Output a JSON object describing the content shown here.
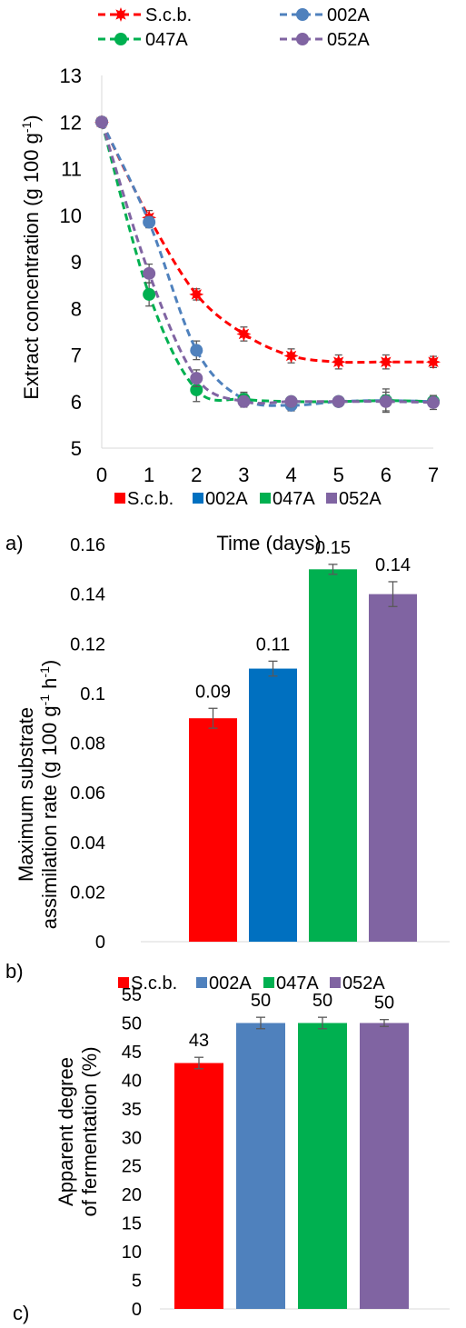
{
  "panels": {
    "a": "a)",
    "b": "b)",
    "c": "c)"
  },
  "colors": {
    "scb": "#ff0000",
    "a002_line": "#4f81bd",
    "a002_bar": "#0070c0",
    "a002_bar_c": "#4f81bd",
    "a047": "#00b050",
    "a052": "#8064a2",
    "axis": "#d9d9d9",
    "error": "#595959"
  },
  "chart_data": [
    {
      "type": "line",
      "xlabel": "Time (days)",
      "ylabel_main": "Extract concentration (g 100 g",
      "ylabel_sup": "-1",
      "ylabel_end": ")",
      "x": [
        0,
        1,
        2,
        3,
        4,
        5,
        6,
        7
      ],
      "xlim": [
        0,
        7
      ],
      "ylim": [
        5,
        13
      ],
      "yticks": [
        5,
        6,
        7,
        8,
        9,
        10,
        11,
        12,
        13
      ],
      "legend": "top",
      "series": [
        {
          "name": "S.c.b.",
          "marker": "star",
          "values": [
            12,
            9.95,
            8.3,
            7.45,
            6.98,
            6.85,
            6.85,
            6.85
          ],
          "errors": [
            0,
            0.15,
            0.12,
            0.15,
            0.15,
            0.15,
            0.15,
            0.12
          ]
        },
        {
          "name": "002A",
          "marker": "circle",
          "values": [
            12,
            9.85,
            7.1,
            6.05,
            5.92,
            6.0,
            6.02,
            6.0
          ],
          "errors": [
            0,
            0.12,
            0.2,
            0.15,
            0.12,
            0.1,
            0.12,
            0.1
          ]
        },
        {
          "name": "047A",
          "marker": "circle",
          "values": [
            12,
            8.3,
            6.25,
            6.05,
            6.0,
            6.0,
            6.02,
            6.0
          ],
          "errors": [
            0,
            0.25,
            0.25,
            0.12,
            0.1,
            0.1,
            0.25,
            0.1
          ]
        },
        {
          "name": "052A",
          "marker": "circle",
          "values": [
            12,
            8.75,
            6.5,
            6.0,
            6.0,
            6.0,
            6.0,
            5.98
          ],
          "errors": [
            0,
            0.2,
            0.18,
            0.12,
            0.1,
            0.1,
            0.2,
            0.15
          ]
        }
      ]
    },
    {
      "type": "bar",
      "ylabel_line1": "Maximum substrate",
      "ylabel_line2_main": "assimilation rate (g 100 g",
      "ylabel_line2_sup1": "-1",
      "ylabel_line2_mid": " h",
      "ylabel_line2_sup2": "-1",
      "ylabel_line2_end": ")",
      "ylim": [
        0,
        0.16
      ],
      "yticks": [
        "0",
        "0.02",
        "0.04",
        "0.06",
        "0.08",
        "0.1",
        "0.12",
        "0.14",
        "0.16"
      ],
      "legend": "top",
      "series": [
        {
          "name": "S.c.b.",
          "value": 0.09,
          "label": "0.09",
          "error": 0.004
        },
        {
          "name": "002A",
          "value": 0.11,
          "label": "0.11",
          "error": 0.003
        },
        {
          "name": "047A",
          "value": 0.15,
          "label": "0.15",
          "error": 0.002
        },
        {
          "name": "052A",
          "value": 0.14,
          "label": "0.14",
          "error": 0.005
        }
      ]
    },
    {
      "type": "bar",
      "ylabel_line1": "Apparent degree",
      "ylabel_line2": "of fermentation (%)",
      "ylim": [
        0,
        55
      ],
      "yticks": [
        "0",
        "5",
        "10",
        "15",
        "20",
        "25",
        "30",
        "35",
        "40",
        "45",
        "50",
        "55"
      ],
      "legend": "top",
      "series": [
        {
          "name": "S.c.b.",
          "value": 43,
          "label": "43",
          "error": 1
        },
        {
          "name": "002A",
          "value": 50,
          "label": "50",
          "error": 1
        },
        {
          "name": "047A",
          "value": 50,
          "label": "50",
          "error": 1
        },
        {
          "name": "052A",
          "value": 50,
          "label": "50",
          "error": 0.6
        }
      ]
    }
  ]
}
